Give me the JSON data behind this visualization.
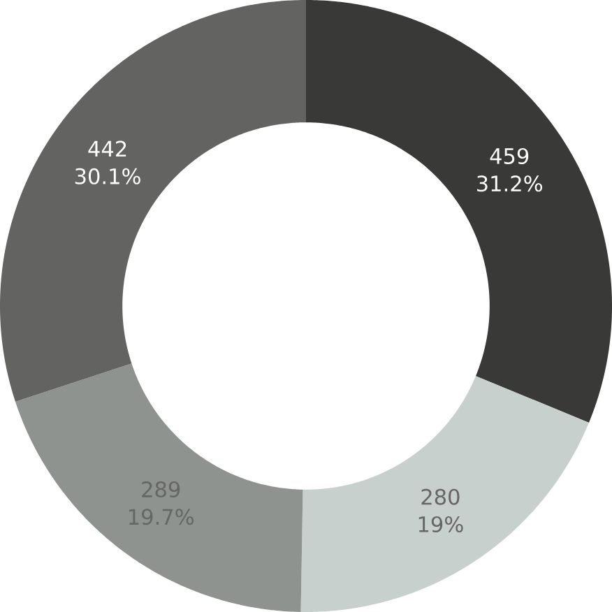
{
  "chart_data": {
    "type": "donut",
    "categories": [
      null,
      null,
      null,
      null
    ],
    "values": [
      459,
      280,
      289,
      442
    ],
    "colors": [
      "#393a38",
      "#c8d0cd",
      "#8e9390",
      "#636462"
    ],
    "value_labels": [
      "459",
      "280",
      "289",
      "442"
    ],
    "annotations": [
      "31.2%",
      "19%",
      "19.7%",
      "30.1%"
    ]
  }
}
